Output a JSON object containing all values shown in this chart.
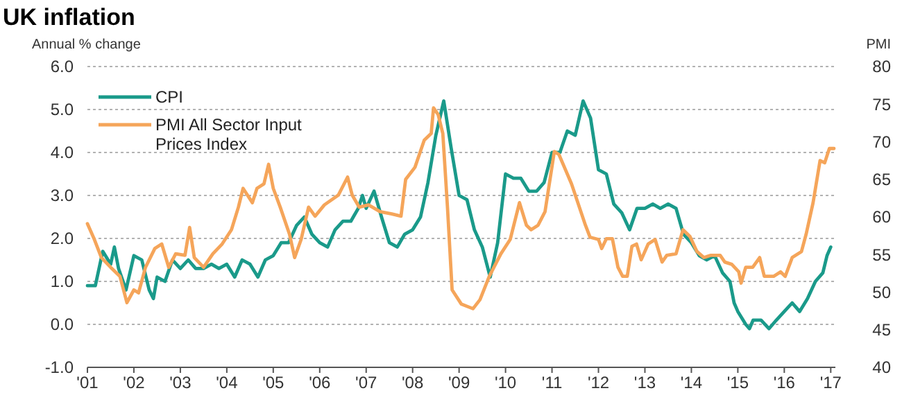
{
  "chart_data": {
    "type": "line",
    "title": "UK inflation",
    "ylabel": "Annual % change",
    "y2label": "PMI",
    "xlim": [
      2001,
      2017.1
    ],
    "xticks": [
      {
        "value": 2001,
        "label": "'01"
      },
      {
        "value": 2002,
        "label": "'02"
      },
      {
        "value": 2003,
        "label": "'03"
      },
      {
        "value": 2004,
        "label": "'04"
      },
      {
        "value": 2005,
        "label": "'05"
      },
      {
        "value": 2006,
        "label": "'06"
      },
      {
        "value": 2007,
        "label": "'07"
      },
      {
        "value": 2008,
        "label": "'08"
      },
      {
        "value": 2009,
        "label": "'09"
      },
      {
        "value": 2010,
        "label": "'10"
      },
      {
        "value": 2011,
        "label": "'11"
      },
      {
        "value": 2012,
        "label": "'12"
      },
      {
        "value": 2013,
        "label": "'13"
      },
      {
        "value": 2014,
        "label": "'14"
      },
      {
        "value": 2015,
        "label": "'15"
      },
      {
        "value": 2016,
        "label": "'16"
      },
      {
        "value": 2017,
        "label": "'17"
      }
    ],
    "ylim": [
      -1,
      6
    ],
    "yticks": [
      {
        "value": -1,
        "label": "-1.0"
      },
      {
        "value": 0,
        "label": "0.0"
      },
      {
        "value": 1,
        "label": "1.0"
      },
      {
        "value": 2,
        "label": "2.0"
      },
      {
        "value": 3,
        "label": "3.0"
      },
      {
        "value": 4,
        "label": "4.0"
      },
      {
        "value": 5,
        "label": "5.0"
      },
      {
        "value": 6,
        "label": "6.0"
      }
    ],
    "y2lim": [
      40,
      80
    ],
    "y2ticks": [
      40,
      45,
      50,
      55,
      60,
      65,
      70,
      75,
      80
    ],
    "grid": "y",
    "legend": "top left",
    "marker": "none",
    "line_style": "solid",
    "series": [
      {
        "name": "CPI",
        "color": "#1a9a8a",
        "x": [
          2001,
          2001.17,
          2001.33,
          2001.5,
          2001.58,
          2001.67,
          2001.83,
          2002,
          2002.17,
          2002.33,
          2002.42,
          2002.5,
          2002.67,
          2002.83,
          2003,
          2003.17,
          2003.33,
          2003.5,
          2003.67,
          2003.83,
          2004,
          2004.17,
          2004.33,
          2004.5,
          2004.67,
          2004.83,
          2005,
          2005.17,
          2005.33,
          2005.5,
          2005.67,
          2005.83,
          2006,
          2006.17,
          2006.33,
          2006.5,
          2006.67,
          2006.83,
          2006.92,
          2007,
          2007.17,
          2007.33,
          2007.5,
          2007.67,
          2007.83,
          2008,
          2008.17,
          2008.33,
          2008.5,
          2008.67,
          2008.83,
          2009,
          2009.17,
          2009.33,
          2009.5,
          2009.67,
          2009.83,
          2010,
          2010.17,
          2010.33,
          2010.5,
          2010.67,
          2010.83,
          2011,
          2011.17,
          2011.33,
          2011.5,
          2011.67,
          2011.83,
          2012,
          2012.17,
          2012.33,
          2012.5,
          2012.67,
          2012.83,
          2013,
          2013.17,
          2013.33,
          2013.5,
          2013.67,
          2013.83,
          2014,
          2014.17,
          2014.33,
          2014.5,
          2014.67,
          2014.83,
          2014.92,
          2015,
          2015.17,
          2015.25,
          2015.33,
          2015.5,
          2015.67,
          2015.83,
          2016,
          2016.17,
          2016.33,
          2016.5,
          2016.67,
          2016.83,
          2016.92,
          2017
        ],
        "values": [
          0.9,
          0.9,
          1.7,
          1.4,
          1.8,
          1.3,
          0.8,
          1.6,
          1.5,
          0.8,
          0.6,
          1.1,
          1.0,
          1.5,
          1.3,
          1.5,
          1.3,
          1.3,
          1.4,
          1.3,
          1.4,
          1.1,
          1.5,
          1.4,
          1.1,
          1.5,
          1.6,
          1.9,
          1.9,
          2.3,
          2.5,
          2.1,
          1.9,
          1.8,
          2.2,
          2.4,
          2.4,
          2.7,
          3.0,
          2.7,
          3.1,
          2.5,
          1.9,
          1.8,
          2.1,
          2.2,
          2.5,
          3.3,
          4.4,
          5.2,
          4.1,
          3.0,
          2.9,
          2.2,
          1.8,
          1.1,
          1.9,
          3.5,
          3.4,
          3.4,
          3.1,
          3.1,
          3.3,
          4.0,
          4.0,
          4.5,
          4.4,
          5.2,
          4.8,
          3.6,
          3.5,
          2.8,
          2.6,
          2.2,
          2.7,
          2.7,
          2.8,
          2.7,
          2.8,
          2.7,
          2.1,
          1.9,
          1.6,
          1.5,
          1.6,
          1.2,
          1.0,
          0.5,
          0.3,
          0.0,
          -0.1,
          0.1,
          0.1,
          -0.1,
          0.1,
          0.3,
          0.5,
          0.3,
          0.6,
          1.0,
          1.2,
          1.6,
          1.8
        ]
      },
      {
        "name": "PMI All Sector Input Prices Index",
        "color": "#f5a55a",
        "axis": "y2",
        "x": [
          2001,
          2001.15,
          2001.3,
          2001.5,
          2001.7,
          2001.85,
          2002,
          2002.1,
          2002.25,
          2002.45,
          2002.6,
          2002.75,
          2002.9,
          2003.1,
          2003.2,
          2003.3,
          2003.5,
          2003.7,
          2003.9,
          2004.1,
          2004.25,
          2004.35,
          2004.55,
          2004.65,
          2004.8,
          2004.9,
          2005,
          2005.15,
          2005.35,
          2005.46,
          2005.6,
          2005.76,
          2005.9,
          2006.1,
          2006.4,
          2006.6,
          2006.7,
          2006.85,
          2007.05,
          2007.3,
          2007.55,
          2007.75,
          2007.85,
          2008.05,
          2008.25,
          2008.4,
          2008.45,
          2008.55,
          2008.65,
          2008.75,
          2008.85,
          2009.05,
          2009.3,
          2009.45,
          2009.65,
          2009.9,
          2010.1,
          2010.3,
          2010.45,
          2010.55,
          2010.7,
          2010.85,
          2011.05,
          2011.15,
          2011.42,
          2011.72,
          2011.82,
          2012,
          2012.07,
          2012.17,
          2012.3,
          2012.42,
          2012.52,
          2012.62,
          2012.72,
          2012.82,
          2012.92,
          2013.07,
          2013.22,
          2013.37,
          2013.47,
          2013.67,
          2013.82,
          2013.97,
          2014.12,
          2014.27,
          2014.42,
          2014.62,
          2014.72,
          2014.87,
          2015.02,
          2015.07,
          2015.17,
          2015.32,
          2015.47,
          2015.57,
          2015.77,
          2015.92,
          2016.02,
          2016.17,
          2016.37,
          2016.47,
          2016.62,
          2016.77,
          2016.87,
          2016.97,
          2017.07
        ],
        "values": [
          59.1,
          57.0,
          54.6,
          53.3,
          52.1,
          48.6,
          50.3,
          49.9,
          53.3,
          55.8,
          56.4,
          53.3,
          55.1,
          54.9,
          58.6,
          54.6,
          53.3,
          55.1,
          56.4,
          58.3,
          61.3,
          63.8,
          61.9,
          63.8,
          64.4,
          67.0,
          63.8,
          61.3,
          57.7,
          54.6,
          57.0,
          61.3,
          60.1,
          61.6,
          62.9,
          65.3,
          62.9,
          61.3,
          61.6,
          60.7,
          60.4,
          60.1,
          65.0,
          66.6,
          70.2,
          71.1,
          74.5,
          73.6,
          71.1,
          61.3,
          50.3,
          48.4,
          47.8,
          49.0,
          52.1,
          55.1,
          57.0,
          61.9,
          58.9,
          58.3,
          58.9,
          60.7,
          68.7,
          68.3,
          64.4,
          58.9,
          57.3,
          57.0,
          55.8,
          57.1,
          57.1,
          53.3,
          52.1,
          52.1,
          56.1,
          56.4,
          54.3,
          56.4,
          57.0,
          54.0,
          54.9,
          55.1,
          58.3,
          57.4,
          55.4,
          54.6,
          54.9,
          54.9,
          54.0,
          53.7,
          52.7,
          51.2,
          53.3,
          53.3,
          54.6,
          52.1,
          52.1,
          52.7,
          52.1,
          54.6,
          55.4,
          57.7,
          61.9,
          67.5,
          67.2,
          69.1,
          69.1
        ]
      }
    ]
  }
}
